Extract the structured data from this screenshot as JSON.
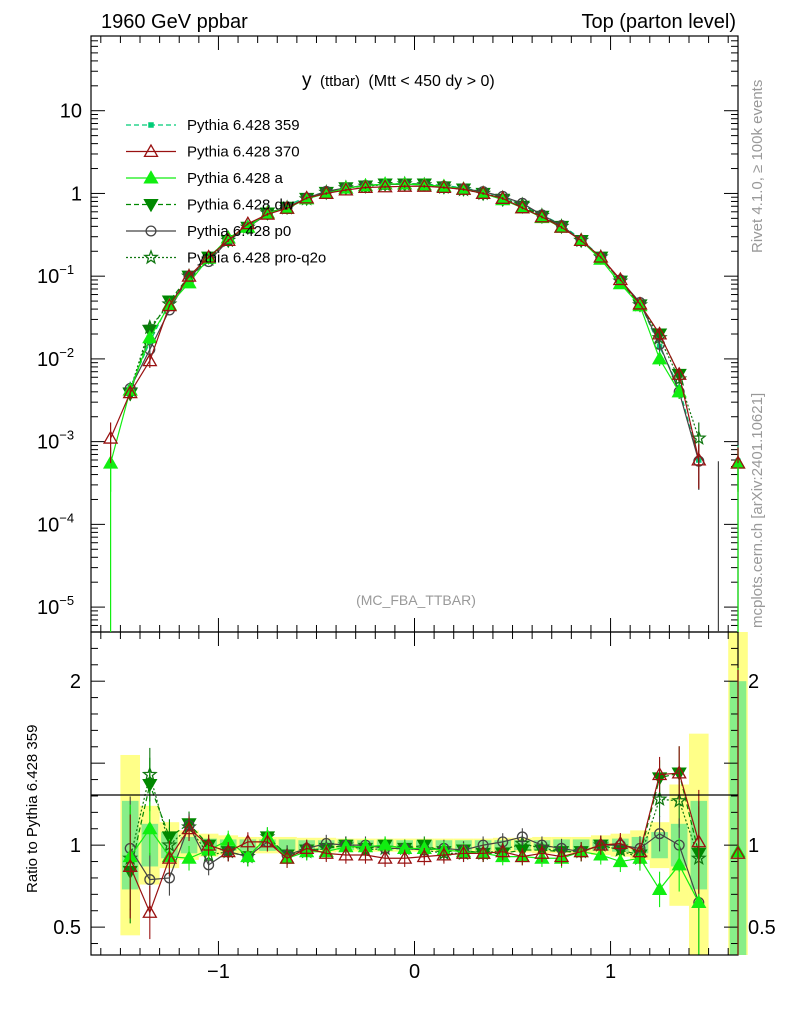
{
  "header": {
    "left": "1960 GeV ppbar",
    "right": "Top (parton level)"
  },
  "side_labels": {
    "rivet": "Rivet 4.1.0, ≥ 100k events",
    "mcplots": "mcplots.cern.ch [arXiv:2401.10621]"
  },
  "plot_title": {
    "main": "y",
    "paren": "(ttbar)",
    "cut": "(Mtt < 450 dy > 0)"
  },
  "watermark": "(MC_FBA_TTBAR)",
  "ratio_ylabel": "Ratio to Pythia 6.428 359",
  "colors": {
    "p359": "#00cc77",
    "p370": "#991111",
    "pa": "#11ee11",
    "pdw": "#008800",
    "pp0": "#444444",
    "pq2o": "#117711",
    "band_yellow": "#ffff88",
    "band_green": "#88ee88"
  },
  "legend": [
    {
      "label": "Pythia 6.428 359"
    },
    {
      "label": "Pythia 6.428 370"
    },
    {
      "label": "Pythia 6.428 a"
    },
    {
      "label": "Pythia 6.428 dw"
    },
    {
      "label": "Pythia 6.428 p0"
    },
    {
      "label": "Pythia 6.428 pro-q2o"
    }
  ],
  "chart_data": {
    "type": "line",
    "title": "y (ttbar) (Mtt < 450 dy > 0)",
    "xlim": [
      -1.65,
      1.65
    ],
    "x_ticks": [
      -1,
      0,
      1
    ],
    "x_tick_labels": [
      "−1",
      "0",
      "1"
    ],
    "main": {
      "yscale": "log",
      "ylim": [
        5e-06,
        80
      ],
      "y_ticks": [
        {
          "base": "10",
          "exp": "−5",
          "value": 1e-05
        },
        {
          "base": "10",
          "exp": "−4",
          "value": 0.0001
        },
        {
          "base": "10",
          "exp": "−3",
          "value": 0.001
        },
        {
          "base": "10",
          "exp": "−2",
          "value": 0.01
        },
        {
          "base": "10",
          "exp": "−1",
          "value": 0.1
        },
        {
          "base": "1",
          "exp": "",
          "value": 1
        },
        {
          "base": "10",
          "exp": "",
          "value": 10
        }
      ]
    },
    "ratio": {
      "ylim": [
        0.33,
        2.3
      ],
      "y_ticks": [
        0.5,
        1,
        2
      ],
      "y_tick_labels": [
        "0.5",
        "1",
        "2"
      ]
    },
    "x": [
      -1.55,
      -1.45,
      -1.35,
      -1.25,
      -1.15,
      -1.05,
      -0.95,
      -0.85,
      -0.75,
      -0.65,
      -0.55,
      -0.45,
      -0.35,
      -0.25,
      -0.15,
      -0.05,
      0.05,
      0.15,
      0.25,
      0.35,
      0.45,
      0.55,
      0.65,
      0.75,
      0.85,
      0.95,
      1.05,
      1.15,
      1.25,
      1.35,
      1.45,
      1.55,
      1.65
    ],
    "series": [
      {
        "name": "Pythia 6.428 359",
        "key": "p359",
        "values": [
          0,
          0.0045,
          0.016,
          0.048,
          0.09,
          0.17,
          0.28,
          0.42,
          0.55,
          0.72,
          0.9,
          1.05,
          1.17,
          1.25,
          1.3,
          1.32,
          1.3,
          1.25,
          1.17,
          1.05,
          0.9,
          0.72,
          0.55,
          0.42,
          0.28,
          0.17,
          0.09,
          0.048,
          0.014,
          0.0045,
          0.0006,
          0,
          0.00058
        ]
      },
      {
        "name": "Pythia 6.428 370",
        "key": "p370",
        "values": [
          0.0011,
          0.0039,
          0.0095,
          0.044,
          0.1,
          0.17,
          0.27,
          0.43,
          0.56,
          0.66,
          0.88,
          1.0,
          1.1,
          1.18,
          1.2,
          1.22,
          1.22,
          1.18,
          1.12,
          1.0,
          0.87,
          0.67,
          0.52,
          0.39,
          0.27,
          0.17,
          0.091,
          0.046,
          0.02,
          0.0065,
          0.0006,
          0,
          0.00055
        ]
      },
      {
        "name": "Pythia 6.428 a",
        "key": "pa",
        "values": [
          0.00055,
          0.0042,
          0.018,
          0.045,
          0.083,
          0.165,
          0.29,
          0.39,
          0.58,
          0.66,
          0.86,
          1.0,
          1.16,
          1.24,
          1.3,
          1.3,
          1.27,
          1.22,
          1.13,
          1.0,
          0.84,
          0.67,
          0.51,
          0.39,
          0.27,
          0.16,
          0.081,
          0.044,
          0.01,
          0.004,
          0,
          0,
          0.00055
        ]
      },
      {
        "name": "Pythia 6.428 dw",
        "key": "pdw",
        "values": [
          0,
          0.0038,
          0.022,
          0.05,
          0.1,
          0.17,
          0.27,
          0.39,
          0.58,
          0.68,
          0.87,
          1.03,
          1.17,
          1.23,
          1.3,
          1.3,
          1.3,
          1.2,
          1.13,
          1.0,
          0.85,
          0.7,
          0.53,
          0.4,
          0.27,
          0.17,
          0.087,
          0.045,
          0.02,
          0.0065,
          0,
          0,
          0
        ]
      },
      {
        "name": "Pythia 6.428 p0",
        "key": "pp0",
        "values": [
          0,
          0.0044,
          0.013,
          0.039,
          0.1,
          0.15,
          0.27,
          0.39,
          0.56,
          0.68,
          0.88,
          1.06,
          1.17,
          1.25,
          1.28,
          1.29,
          1.26,
          1.22,
          1.14,
          1.05,
          0.92,
          0.76,
          0.55,
          0.41,
          0.27,
          0.17,
          0.09,
          0.048,
          0.015,
          0.004,
          0.00058,
          0,
          0
        ]
      },
      {
        "name": "Pythia 6.428 pro-q2o",
        "key": "pq2o",
        "values": [
          0,
          0.0042,
          0.024,
          0.046,
          0.1,
          0.16,
          0.27,
          0.39,
          0.58,
          0.67,
          0.86,
          1.03,
          1.17,
          1.22,
          1.28,
          1.3,
          1.27,
          1.19,
          1.11,
          1.0,
          0.88,
          0.73,
          0.54,
          0.4,
          0.27,
          0.17,
          0.087,
          0.045,
          0.018,
          0.0057,
          0.0011,
          0,
          0
        ]
      }
    ],
    "ratio_series": [
      {
        "key": "p370",
        "values": [
          null,
          0.87,
          0.59,
          0.92,
          1.1,
          1.0,
          0.96,
          1.02,
          1.02,
          0.92,
          0.98,
          0.95,
          0.94,
          0.94,
          0.92,
          0.92,
          0.93,
          0.94,
          0.95,
          0.95,
          0.96,
          0.93,
          0.95,
          0.93,
          0.96,
          1.0,
          1.01,
          0.96,
          1.43,
          1.44,
          1.02,
          null,
          0.95
        ]
      },
      {
        "key": "pa",
        "values": [
          null,
          0.93,
          1.1,
          0.93,
          0.92,
          0.97,
          1.03,
          0.93,
          1.05,
          0.92,
          0.96,
          0.96,
          0.99,
          0.99,
          1.0,
          0.98,
          0.98,
          0.97,
          0.96,
          0.95,
          0.93,
          0.93,
          0.92,
          0.92,
          0.96,
          0.94,
          0.9,
          0.92,
          0.73,
          0.88,
          0.65,
          null,
          0.96
        ]
      },
      {
        "key": "pdw",
        "values": [
          null,
          0.84,
          1.37,
          1.05,
          1.13,
          1.0,
          0.96,
          0.93,
          1.05,
          0.94,
          0.97,
          0.98,
          1.0,
          0.98,
          1.0,
          0.98,
          1.0,
          0.96,
          0.97,
          0.95,
          0.95,
          0.97,
          0.97,
          0.96,
          0.96,
          1.0,
          0.97,
          0.94,
          1.41,
          1.44,
          0.95,
          null,
          null
        ]
      },
      {
        "key": "pp0",
        "values": [
          null,
          0.98,
          0.79,
          0.8,
          1.12,
          0.88,
          0.96,
          0.93,
          1.02,
          0.94,
          0.98,
          1.01,
          1.0,
          1.0,
          0.98,
          0.98,
          0.97,
          0.98,
          0.97,
          1.0,
          1.02,
          1.05,
          1.0,
          0.98,
          0.96,
          1.0,
          1.0,
          0.98,
          1.07,
          1.0,
          0.65,
          null,
          null
        ]
      },
      {
        "key": "pq2o",
        "values": [
          null,
          0.92,
          1.43,
          1.0,
          1.11,
          0.94,
          0.96,
          0.93,
          1.05,
          0.94,
          0.96,
          0.98,
          1.0,
          0.97,
          0.98,
          0.98,
          0.97,
          0.95,
          0.95,
          0.95,
          0.97,
          1.01,
          0.98,
          0.96,
          0.96,
          1.0,
          0.97,
          0.92,
          1.28,
          1.27,
          0.92,
          null,
          null
        ]
      }
    ],
    "ratio_bands": {
      "green_half": [
        0,
        0.27,
        0.13,
        0.08,
        0.05,
        0.04,
        0.035,
        0.035,
        0.035,
        0.035,
        0.03,
        0.03,
        0.03,
        0.03,
        0.03,
        0.03,
        0.03,
        0.03,
        0.03,
        0.03,
        0.03,
        0.03,
        0.03,
        0.035,
        0.035,
        0.035,
        0.04,
        0.05,
        0.08,
        0.13,
        0.27,
        0,
        1.0
      ],
      "yellow_half": [
        0,
        0.55,
        0.24,
        0.14,
        0.09,
        0.07,
        0.06,
        0.05,
        0.05,
        0.05,
        0.045,
        0.045,
        0.04,
        0.04,
        0.04,
        0.04,
        0.04,
        0.04,
        0.04,
        0.04,
        0.045,
        0.045,
        0.05,
        0.05,
        0.05,
        0.06,
        0.07,
        0.09,
        0.14,
        0.37,
        0.68,
        0,
        1.3
      ]
    }
  }
}
